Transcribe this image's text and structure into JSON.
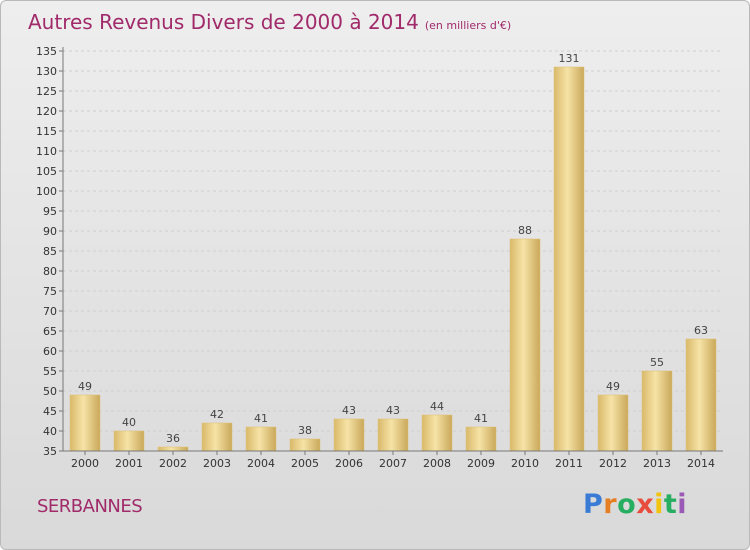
{
  "header": {
    "title": "Autres Revenus Divers de 2000 à 2014",
    "subtitle": "(en milliers d'€)"
  },
  "footer": {
    "commune": "SERBANNES",
    "logo": "Proxiti"
  },
  "colors": {
    "title": "#a02a6a",
    "bar_fill": "#e8c97a",
    "bar_highlight": "#f6e3a6",
    "grid": "#c8c8c8"
  },
  "chart_data": {
    "type": "bar",
    "title": "Autres Revenus Divers de 2000 à 2014",
    "subtitle": "(en milliers d'€)",
    "categories": [
      "2000",
      "2001",
      "2002",
      "2003",
      "2004",
      "2005",
      "2006",
      "2007",
      "2008",
      "2009",
      "2010",
      "2011",
      "2012",
      "2013",
      "2014"
    ],
    "values": [
      49,
      40,
      36,
      42,
      41,
      38,
      43,
      43,
      44,
      41,
      88,
      131,
      49,
      55,
      63
    ],
    "ylim": [
      35,
      135
    ],
    "ytick_step": 5,
    "xlabel": "",
    "ylabel": "",
    "grid": true,
    "legend": "none"
  }
}
